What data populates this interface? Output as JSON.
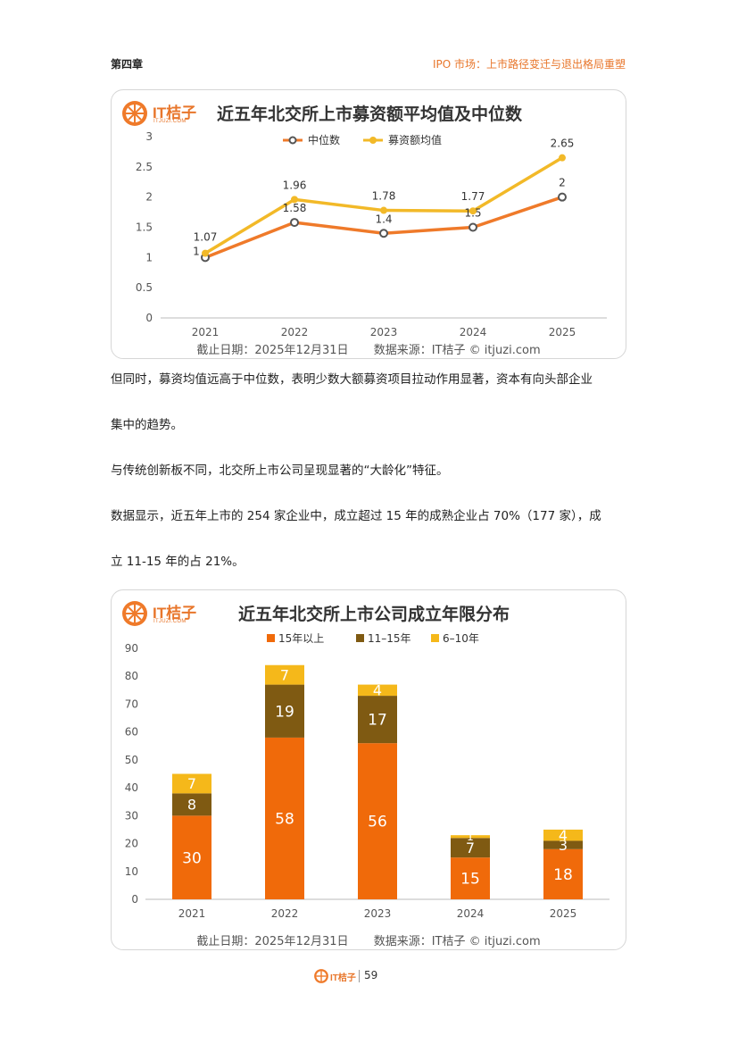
{
  "header": {
    "chapter": "第四章",
    "section": "IPO 市场：上市路径变迁与退出格局重塑"
  },
  "logo": {
    "text": "IT桔子",
    "sub": "ITJUZI.COM"
  },
  "chart1": {
    "caption_date": "截止日期：2025年12月31日",
    "caption_source": "数据来源：IT桔子 © itjuzi.com"
  },
  "chart2": {
    "caption_date": "截止日期：2025年12月31日",
    "caption_source": "数据来源：IT桔子 © itjuzi.com"
  },
  "paragraphs": [
    "但同时，募资均值远高于中位数，表明少数大额募资项目拉动作用显著，资本有向头部企业",
    "集中的趋势。",
    "与传统创新板不同，北交所上市公司呈现显著的“大龄化”特征。",
    "数据显示，近五年上市的 254 家企业中，成立超过 15 年的成熟企业占 70%（177 家），成",
    "立 11-15 年的占 21%。"
  ],
  "footer": {
    "page": "59"
  },
  "colors": {
    "accent": "#e8762b",
    "orange": "#f06a0a",
    "brown": "#7f5a12",
    "gold": "#f5b81a",
    "median": "#ef7a2a",
    "mean": "#f2b928"
  },
  "chart_data": [
    {
      "type": "line",
      "title": "近五年北交所上市募资额平均值及中位数",
      "categories": [
        "2021",
        "2022",
        "2023",
        "2024",
        "2025"
      ],
      "series": [
        {
          "name": "中位数",
          "values": [
            1,
            1.58,
            1.4,
            1.5,
            2
          ],
          "labels": [
            "1",
            "1.58",
            "1.4",
            "1.5",
            "2"
          ]
        },
        {
          "name": "募资额均值",
          "values": [
            1.07,
            1.96,
            1.78,
            1.77,
            2.65
          ],
          "labels": [
            "1.07",
            "1.96",
            "1.78",
            "1.77",
            "2.65"
          ]
        }
      ],
      "yticks": [
        "0",
        "0.5",
        "1",
        "1.5",
        "2",
        "2.5",
        "3"
      ],
      "ylim": [
        0,
        3
      ],
      "legend": "top-center",
      "grid": false
    },
    {
      "type": "bar",
      "stacked": true,
      "title": "近五年北交所上市公司成立年限分布",
      "categories": [
        "2021",
        "2022",
        "2023",
        "2024",
        "2025"
      ],
      "series": [
        {
          "name": "15年以上",
          "values": [
            30,
            58,
            56,
            15,
            18
          ]
        },
        {
          "name": "11–15年",
          "values": [
            8,
            19,
            17,
            7,
            3
          ]
        },
        {
          "name": "6–10年",
          "values": [
            7,
            7,
            4,
            1,
            4
          ]
        }
      ],
      "yticks": [
        "0",
        "10",
        "20",
        "30",
        "40",
        "50",
        "60",
        "70",
        "80",
        "90"
      ],
      "ylim": [
        0,
        90
      ],
      "legend": "top-center",
      "grid": false
    }
  ]
}
